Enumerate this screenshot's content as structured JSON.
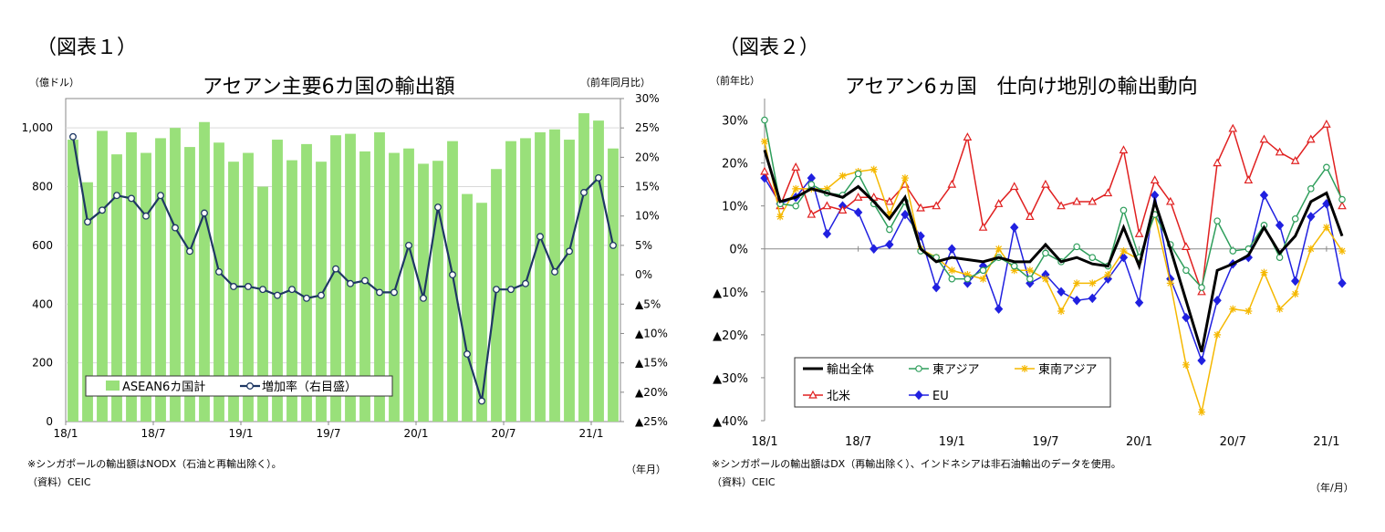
{
  "charts": [
    {
      "figure_label": "（図表１）",
      "title": "アセアン主要6カ国の輸出額",
      "left_unit": "（億ドル）",
      "right_unit": "（前年同月比）",
      "x_unit": "（年月）",
      "notes": [
        "※シンガポールの輸出額はNODX（石油と再輸出除く）。",
        "（資料）CEIC"
      ],
      "legend": {
        "bar_label": "ASEAN6カ国計",
        "line_label": "増加率（右目盛）"
      },
      "colors": {
        "bar": "#99e07a",
        "line": "#1f3864",
        "marker_fill": "#ffffff",
        "grid": "#d9d9d9"
      }
    },
    {
      "figure_label": "（図表２）",
      "title": "アセアン6ヵ国　仕向け地別の輸出動向",
      "y_unit": "（前年比）",
      "x_unit": "（年/月）",
      "notes": [
        "※シンガポールの輸出額はDX（再輸出除く）、インドネシアは非石油輸出のデータを使用。",
        "（資料）CEIC"
      ]
    }
  ],
  "chart_data": [
    {
      "type": "bar",
      "categories": [
        "18/1",
        "18/2",
        "18/3",
        "18/4",
        "18/5",
        "18/6",
        "18/7",
        "18/8",
        "18/9",
        "18/10",
        "18/11",
        "18/12",
        "19/1",
        "19/2",
        "19/3",
        "19/4",
        "19/5",
        "19/6",
        "19/7",
        "19/8",
        "19/9",
        "19/10",
        "19/11",
        "19/12",
        "20/1",
        "20/2",
        "20/3",
        "20/4",
        "20/5",
        "20/6",
        "20/7",
        "20/8",
        "20/9",
        "20/10",
        "20/11",
        "20/12",
        "21/1",
        "21/2"
      ],
      "x_tick_labels": [
        "18/1",
        "18/7",
        "19/1",
        "19/7",
        "20/1",
        "20/7",
        "21/1"
      ],
      "x_tick_indices": [
        0,
        6,
        12,
        18,
        24,
        30,
        36
      ],
      "y_left": {
        "lim": [
          0,
          1100
        ],
        "ticks": [
          0,
          200,
          400,
          600,
          800,
          1000
        ],
        "tick_labels": [
          "0",
          "200",
          "400",
          "600",
          "800",
          "1,000"
        ]
      },
      "y_right": {
        "lim": [
          -25,
          30
        ],
        "ticks": [
          30,
          25,
          20,
          15,
          10,
          5,
          0,
          -5,
          -10,
          -15,
          -20,
          -25
        ],
        "tick_labels": [
          "30%",
          "25%",
          "20%",
          "15%",
          "10%",
          "5%",
          "0%",
          "▲5%",
          "▲10%",
          "▲15%",
          "▲20%",
          "▲25%"
        ]
      },
      "grid": true,
      "legend_position": "bottom-left",
      "series": [
        {
          "name": "ASEAN6カ国計",
          "kind": "bar",
          "axis": "left",
          "values": [
            960,
            815,
            990,
            910,
            985,
            915,
            965,
            1000,
            935,
            1020,
            950,
            885,
            915,
            800,
            960,
            890,
            945,
            885,
            975,
            980,
            920,
            985,
            915,
            930,
            878,
            888,
            955,
            775,
            745,
            860,
            955,
            965,
            985,
            995,
            960,
            1050,
            1025,
            930
          ]
        },
        {
          "name": "増加率（右目盛）",
          "kind": "line",
          "axis": "right",
          "values": [
            23.5,
            9,
            11,
            13.5,
            13,
            10,
            13.5,
            8,
            4,
            10.5,
            0.5,
            -2,
            -2,
            -2.5,
            -3.5,
            -2.5,
            -4,
            -3.5,
            1,
            -1.5,
            -1,
            -3,
            -3,
            5,
            -4,
            11.5,
            0,
            -13.5,
            -21.5,
            -2.5,
            -2.5,
            -1.5,
            6.5,
            0.5,
            4,
            14,
            16.5,
            5
          ]
        }
      ]
    },
    {
      "type": "line",
      "x": [
        "18/1",
        "18/2",
        "18/3",
        "18/4",
        "18/5",
        "18/6",
        "18/7",
        "18/8",
        "18/9",
        "18/10",
        "18/11",
        "18/12",
        "19/1",
        "19/2",
        "19/3",
        "19/4",
        "19/5",
        "19/6",
        "19/7",
        "19/8",
        "19/9",
        "19/10",
        "19/11",
        "19/12",
        "20/1",
        "20/2",
        "20/3",
        "20/4",
        "20/5",
        "20/6",
        "20/7",
        "20/8",
        "20/9",
        "20/10",
        "20/11",
        "20/12",
        "21/1",
        "21/2"
      ],
      "x_tick_labels": [
        "18/1",
        "18/7",
        "19/1",
        "19/7",
        "20/1",
        "20/7",
        "21/1"
      ],
      "x_tick_indices": [
        0,
        6,
        12,
        18,
        24,
        30,
        36
      ],
      "ylim": [
        -40,
        35
      ],
      "y_ticks": [
        30,
        20,
        10,
        0,
        -10,
        -20,
        -30,
        -40
      ],
      "y_tick_labels": [
        "30%",
        "20%",
        "10%",
        "0%",
        "▲10%",
        "▲20%",
        "▲30%",
        "▲40%"
      ],
      "grid": true,
      "legend_position": "bottom-left",
      "series": [
        {
          "name": "輸出全体",
          "color": "#000000",
          "marker": "none",
          "width": 3,
          "values": [
            23,
            11,
            12,
            14,
            13,
            12,
            14.5,
            11,
            7,
            12,
            0,
            -3,
            -2,
            -2.5,
            -3,
            -2,
            -3,
            -3,
            1,
            -3,
            -2,
            -3.5,
            -4,
            5,
            -4,
            11,
            0,
            -12,
            -24,
            -5,
            -3.5,
            -1.5,
            5,
            -1,
            3,
            11,
            13,
            3
          ]
        },
        {
          "name": "東アジア",
          "color": "#2e9e5b",
          "marker": "circle",
          "width": 1.5,
          "values": [
            30,
            10.5,
            10,
            15,
            13,
            12.5,
            17.5,
            10.5,
            4.5,
            11,
            -0.5,
            -2,
            -7,
            -7,
            -5,
            -2,
            -4,
            -7,
            -1,
            -3,
            0.5,
            -2,
            -4,
            9,
            -2,
            8,
            1,
            -5,
            -9,
            6.5,
            -0.5,
            0,
            5.5,
            -2,
            7,
            14,
            19,
            11.5
          ]
        },
        {
          "name": "東南アジア",
          "color": "#f5b800",
          "marker": "star",
          "width": 1.5,
          "values": [
            25,
            7.5,
            14,
            14,
            14,
            17,
            18,
            18.5,
            8,
            16.5,
            0,
            -2,
            -5,
            -6,
            -7,
            0,
            -5,
            -5,
            -7,
            -14.5,
            -8,
            -8,
            -6,
            -0.5,
            -2.5,
            8,
            -8,
            -27,
            -38,
            -20,
            -14,
            -14.5,
            -5.5,
            -14,
            -10.5,
            0,
            5,
            -0.5
          ]
        },
        {
          "name": "北米",
          "color": "#e02020",
          "marker": "triangle",
          "width": 1.5,
          "values": [
            18,
            10,
            19,
            8,
            10,
            9,
            12,
            12,
            11,
            15,
            9.5,
            10,
            15,
            26,
            5,
            10.5,
            14.5,
            7.5,
            15,
            10,
            11,
            11,
            13,
            23,
            3.5,
            16,
            11,
            0.5,
            -10,
            20,
            28,
            16,
            25.5,
            22.5,
            20.5,
            25.5,
            29,
            10
          ]
        },
        {
          "name": "EU",
          "color": "#2020e0",
          "marker": "diamond",
          "width": 1.5,
          "values": [
            16.5,
            10.5,
            12,
            16.5,
            3.5,
            10,
            8.5,
            0,
            1,
            8,
            3,
            -9,
            0,
            -8,
            -4,
            -14,
            5,
            -8,
            -6,
            -10,
            -12,
            -11.5,
            -7,
            -2,
            -12.5,
            12.5,
            -7,
            -16,
            -26,
            -12,
            -3.5,
            -2,
            12.5,
            5.5,
            -7.5,
            7.5,
            10.5,
            -8
          ]
        }
      ]
    }
  ]
}
